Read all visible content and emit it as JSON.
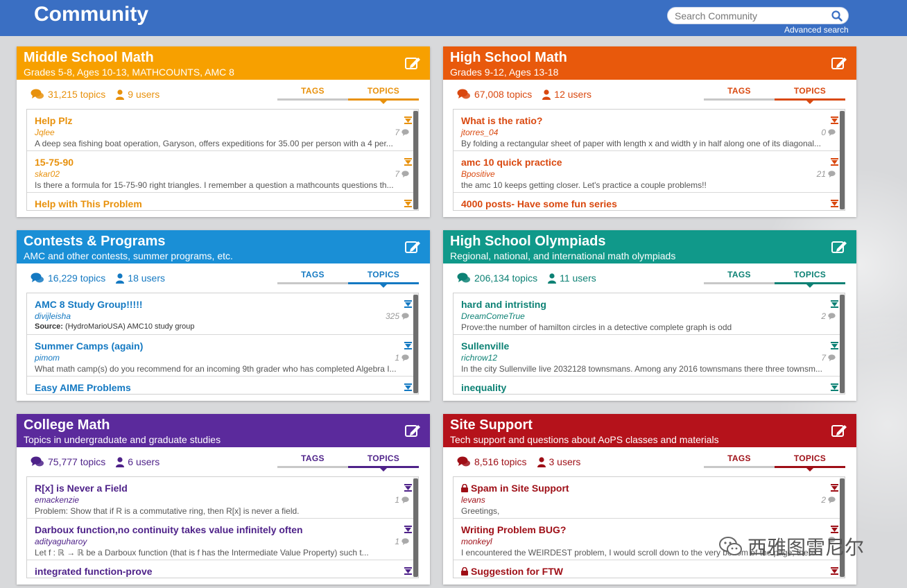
{
  "header": {
    "title": "Community",
    "search_placeholder": "Search Community",
    "advanced_search": "Advanced search"
  },
  "tabs": {
    "tags": "TAGS",
    "topics": "TOPICS"
  },
  "forums": [
    {
      "title": "Middle School Math",
      "subtitle": "Grades 5-8, Ages 10-13, MATHCOUNTS, AMC 8",
      "color": "#f7a000",
      "accent": "#e8910c",
      "topics": "31,215 topics",
      "users": "9 users",
      "items": [
        {
          "title": "Help Plz",
          "author": "Jqlee",
          "count": "7",
          "preview": "A deep sea fishing boat operation, Garyson, offers expeditions for 35.00 per person with a 4 per..."
        },
        {
          "title": "15-75-90",
          "author": "skar02",
          "count": "7",
          "preview": "Is there a formula for 15-75-90 right triangles. I remember a question a mathcounts questions th..."
        },
        {
          "title": "Help with This Problem",
          "author": "",
          "count": "",
          "preview": ""
        }
      ]
    },
    {
      "title": "High School Math",
      "subtitle": "Grades 9-12, Ages 13-18",
      "color": "#e8590c",
      "accent": "#d9480f",
      "topics": "67,008 topics",
      "users": "12 users",
      "items": [
        {
          "title": "What is the ratio?",
          "author": "jtorres_04",
          "count": "0",
          "preview": "By folding a rectangular sheet of paper with length x and width y in half along one of its diagonal..."
        },
        {
          "title": "amc 10 quick practice",
          "author": "Bpositive",
          "count": "21",
          "preview": "the amc 10 keeps getting closer. Let's practice a couple problems!!"
        },
        {
          "title": "4000 posts- Have some fun series",
          "author": "",
          "count": "",
          "preview": ""
        }
      ]
    },
    {
      "title": "Contests & Programs",
      "subtitle": "AMC and other contests, summer programs, etc.",
      "color": "#1a8fd6",
      "accent": "#1479c2",
      "topics": "16,229 topics",
      "users": "18 users",
      "items": [
        {
          "title": "AMC 8 Study Group!!!!!",
          "author": "divijleisha",
          "count": "325",
          "preview": "(HydroMarioUSA) AMC10 study group",
          "source_label": "Source:"
        },
        {
          "title": "Summer Camps (again)",
          "author": "pimom",
          "count": "1",
          "preview": "What math camp(s) do you recommend for an incoming 9th grader who has completed Algebra I..."
        },
        {
          "title": "Easy AIME Problems",
          "author": "",
          "count": "",
          "preview": ""
        }
      ]
    },
    {
      "title": "High School Olympiads",
      "subtitle": "Regional, national, and international math olympiads",
      "color": "#10998a",
      "accent": "#0c8174",
      "topics": "206,134 topics",
      "users": "11 users",
      "items": [
        {
          "title": "hard and intristing",
          "author": "DreamComeTrue",
          "count": "2",
          "preview": "Prove:the number of hamilton circles in a detective complete graph is odd"
        },
        {
          "title": "Sullenville",
          "author": "richrow12",
          "count": "7",
          "preview": "In the city Sullenville live 2032128 townsmans. Among any 2016 townsmans there three townsm..."
        },
        {
          "title": "inequality",
          "author": "",
          "count": "",
          "preview": ""
        }
      ]
    },
    {
      "title": "College Math",
      "subtitle": "Topics in undergraduate and graduate studies",
      "color": "#5b2a9c",
      "accent": "#4e2289",
      "topics": "75,777 topics",
      "users": "6 users",
      "items": [
        {
          "title": "R[x] is Never a Field",
          "author": "emackenzie",
          "count": "1",
          "preview": "Problem: Show that if R is a commutative ring, then R[x] is never a field."
        },
        {
          "title": "Darboux function,no continuity takes value infinitely often",
          "author": "adityaguharoy",
          "count": "1",
          "preview": "Let f : ℝ → ℝ be a Darboux function (that is f has the Intermediate Value Property) such t..."
        },
        {
          "title": "integrated function-prove",
          "author": "",
          "count": "",
          "preview": ""
        }
      ]
    },
    {
      "title": "Site Support",
      "subtitle": "Tech support and questions about AoPS classes and materials",
      "color": "#b5121b",
      "accent": "#9e0e16",
      "topics": "8,516 topics",
      "users": "3 users",
      "items": [
        {
          "title": "Spam in Site Support",
          "author": "levans",
          "count": "2",
          "preview": "Greetings,",
          "locked": true
        },
        {
          "title": "Writing Problem BUG?",
          "author": "monkeyl",
          "count": "",
          "preview": "I encountered the WEIRDEST problem, I would scroll down to the very bottom of the page, there..."
        },
        {
          "title": "Suggestion for FTW",
          "author": "",
          "count": "",
          "preview": "",
          "locked": true
        }
      ]
    }
  ],
  "watermark": {
    "text": "西雅图雷尼尔"
  }
}
